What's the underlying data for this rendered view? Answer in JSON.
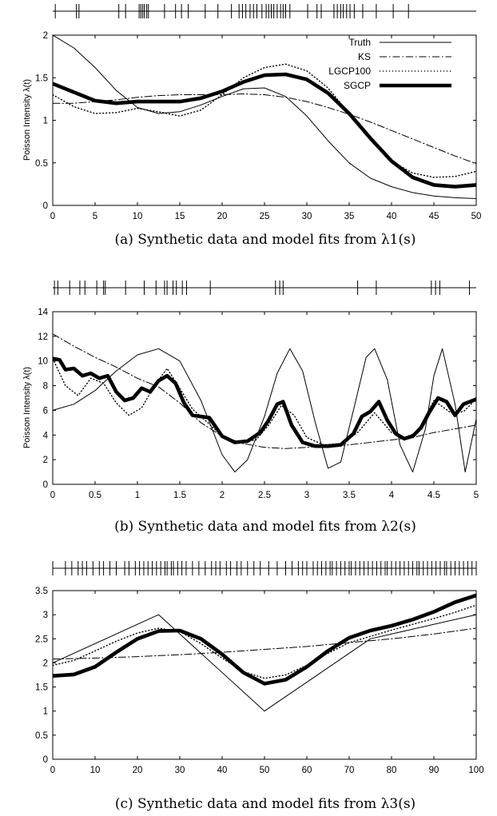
{
  "chart_data": [
    {
      "type": "line",
      "caption": "(a) Synthetic data and model fits from λ1(s)",
      "ylabel": "Poisson Intensity λ(t)",
      "xlim": [
        0,
        50
      ],
      "ylim": [
        0,
        2
      ],
      "xticks": [
        0,
        5,
        10,
        15,
        20,
        25,
        30,
        35,
        40,
        45,
        50
      ],
      "yticks": [
        0,
        0.5,
        1,
        1.5,
        2
      ],
      "legend": [
        "Truth",
        "KS",
        "LGCP100",
        "SGCP"
      ],
      "legend_position": "top-right",
      "events": [
        0.3,
        2.8,
        3.1,
        7.8,
        8.6,
        10.2,
        10.4,
        10.6,
        10.8,
        11.1,
        11.3,
        13.2,
        14.5,
        15.2,
        16.0,
        18.0,
        19.5,
        21.1,
        22.0,
        22.4,
        22.8,
        23.3,
        23.7,
        24.1,
        24.7,
        25.2,
        25.5,
        25.8,
        26.1,
        26.5,
        26.9,
        27.2,
        27.5,
        28.0,
        30.1,
        31.2,
        31.7,
        33.2,
        33.6,
        34.0,
        34.3,
        34.7,
        35.1,
        35.6,
        36.6,
        38.2,
        40.2,
        42.0
      ],
      "series": [
        {
          "name": "Truth",
          "x": [
            0,
            2.5,
            5,
            7.5,
            10,
            12.5,
            15,
            17.5,
            20,
            22.5,
            25,
            27.5,
            30,
            32.5,
            35,
            37.5,
            40,
            42.5,
            45,
            47.5,
            50
          ],
          "y": [
            2.0,
            1.85,
            1.62,
            1.35,
            1.15,
            1.08,
            1.1,
            1.18,
            1.28,
            1.37,
            1.38,
            1.28,
            1.05,
            0.76,
            0.5,
            0.32,
            0.22,
            0.15,
            0.11,
            0.09,
            0.08
          ]
        },
        {
          "name": "KS",
          "x": [
            0,
            2.5,
            5,
            7.5,
            10,
            12.5,
            15,
            17.5,
            20,
            22.5,
            25,
            27.5,
            30,
            32.5,
            35,
            37.5,
            40,
            42.5,
            45,
            47.5,
            50
          ],
          "y": [
            1.2,
            1.2,
            1.22,
            1.24,
            1.27,
            1.29,
            1.3,
            1.3,
            1.3,
            1.31,
            1.3,
            1.27,
            1.22,
            1.15,
            1.07,
            0.98,
            0.88,
            0.78,
            0.68,
            0.58,
            0.49
          ]
        },
        {
          "name": "LGCP100",
          "x": [
            0,
            2.5,
            5,
            7.5,
            10,
            12.5,
            15,
            17.5,
            20,
            22.5,
            25,
            27.5,
            30,
            32.5,
            35,
            37.5,
            40,
            42.5,
            45,
            47.5,
            50
          ],
          "y": [
            1.3,
            1.16,
            1.08,
            1.09,
            1.14,
            1.1,
            1.05,
            1.12,
            1.3,
            1.5,
            1.62,
            1.66,
            1.58,
            1.38,
            1.08,
            0.78,
            0.52,
            0.38,
            0.33,
            0.34,
            0.4
          ]
        },
        {
          "name": "SGCP",
          "x": [
            0,
            2.5,
            5,
            7.5,
            10,
            12.5,
            15,
            17.5,
            20,
            22.5,
            25,
            27.5,
            30,
            32.5,
            35,
            37.5,
            40,
            42.5,
            45,
            47.5,
            50
          ],
          "y": [
            1.43,
            1.33,
            1.23,
            1.2,
            1.22,
            1.22,
            1.22,
            1.26,
            1.34,
            1.45,
            1.53,
            1.54,
            1.48,
            1.32,
            1.08,
            0.79,
            0.52,
            0.33,
            0.24,
            0.22,
            0.24
          ]
        }
      ]
    },
    {
      "type": "line",
      "caption": "(b) Synthetic data and model fits from λ2(s)",
      "ylabel": "Poisson Intensity λ(t)",
      "xlim": [
        0,
        5
      ],
      "ylim": [
        0,
        14
      ],
      "xticks": [
        0,
        0.5,
        1,
        1.5,
        2,
        2.5,
        3,
        3.5,
        4,
        4.5,
        5
      ],
      "yticks": [
        0,
        2,
        4,
        6,
        8,
        10,
        12,
        14
      ],
      "events": [
        0.02,
        0.06,
        0.2,
        0.32,
        0.38,
        0.52,
        0.6,
        0.62,
        0.86,
        1.08,
        1.22,
        1.32,
        1.35,
        1.42,
        1.46,
        1.53,
        1.58,
        1.86,
        2.63,
        2.68,
        2.72,
        3.6,
        3.82,
        4.47,
        4.52,
        4.57,
        4.92
      ],
      "series": [
        {
          "name": "Truth",
          "x": [
            0,
            0.25,
            0.5,
            0.75,
            1,
            1.25,
            1.5,
            1.75,
            2,
            2.15,
            2.3,
            2.5,
            2.65,
            2.8,
            2.95,
            3.1,
            3.25,
            3.4,
            3.55,
            3.7,
            3.8,
            3.95,
            4.1,
            4.25,
            4.4,
            4.5,
            4.6,
            4.75,
            4.87,
            5
          ],
          "y": [
            6.0,
            6.5,
            7.6,
            9.2,
            10.5,
            11.0,
            10.0,
            6.8,
            2.4,
            1.0,
            2.0,
            5.5,
            9.0,
            11.0,
            9.2,
            5.0,
            1.3,
            1.8,
            6.0,
            10.3,
            11.0,
            8.5,
            3.2,
            1.0,
            4.5,
            8.8,
            11.0,
            6.5,
            1.0,
            5.3
          ]
        },
        {
          "name": "KS",
          "x": [
            0,
            0.25,
            0.5,
            0.75,
            1,
            1.25,
            1.5,
            1.75,
            2,
            2.25,
            2.5,
            2.75,
            3,
            3.25,
            3.5,
            3.75,
            4,
            4.25,
            4.5,
            4.75,
            5
          ],
          "y": [
            12.2,
            11.2,
            10.3,
            9.5,
            8.6,
            7.9,
            6.6,
            5.0,
            3.9,
            3.3,
            3.0,
            2.9,
            3.0,
            3.1,
            3.2,
            3.4,
            3.6,
            3.8,
            4.2,
            4.5,
            4.8
          ]
        },
        {
          "name": "LGCP100",
          "x": [
            0,
            0.15,
            0.3,
            0.45,
            0.6,
            0.75,
            0.9,
            1.05,
            1.2,
            1.35,
            1.5,
            1.65,
            1.8,
            2.0,
            2.2,
            2.4,
            2.55,
            2.7,
            2.85,
            3.0,
            3.2,
            3.4,
            3.6,
            3.8,
            4.0,
            4.15,
            4.3,
            4.5,
            4.7,
            4.85,
            5
          ],
          "y": [
            10.2,
            8.0,
            7.2,
            8.6,
            8.2,
            6.6,
            5.6,
            6.2,
            8.0,
            9.4,
            7.8,
            6.1,
            5.2,
            3.9,
            3.4,
            3.6,
            4.8,
            6.4,
            5.6,
            3.8,
            3.2,
            3.3,
            4.2,
            5.8,
            4.2,
            3.8,
            4.2,
            6.8,
            5.8,
            5.9,
            6.9
          ]
        },
        {
          "name": "SGCP",
          "x": [
            0,
            0.08,
            0.15,
            0.25,
            0.35,
            0.45,
            0.55,
            0.65,
            0.75,
            0.85,
            0.95,
            1.05,
            1.15,
            1.25,
            1.35,
            1.45,
            1.55,
            1.65,
            1.75,
            1.85,
            2.0,
            2.15,
            2.3,
            2.45,
            2.55,
            2.65,
            2.72,
            2.82,
            2.95,
            3.1,
            3.25,
            3.4,
            3.55,
            3.65,
            3.75,
            3.85,
            3.95,
            4.05,
            4.15,
            4.25,
            4.35,
            4.45,
            4.55,
            4.65,
            4.75,
            4.85,
            5
          ],
          "y": [
            10.2,
            10.1,
            9.3,
            9.4,
            8.8,
            9.0,
            8.6,
            8.8,
            7.5,
            6.8,
            7.0,
            7.8,
            7.5,
            8.4,
            8.8,
            8.2,
            6.6,
            5.6,
            5.5,
            5.4,
            3.9,
            3.4,
            3.5,
            4.2,
            5.2,
            6.5,
            6.7,
            4.8,
            3.4,
            3.1,
            3.1,
            3.2,
            4.1,
            5.5,
            5.9,
            6.7,
            5.2,
            4.1,
            3.7,
            3.9,
            4.6,
            5.9,
            7.0,
            6.7,
            5.6,
            6.5,
            6.9
          ]
        }
      ]
    },
    {
      "type": "line",
      "caption": "(c) Synthetic data and model fits from λ3(s)",
      "ylabel": "",
      "xlim": [
        0,
        100
      ],
      "ylim": [
        0,
        3.5
      ],
      "xticks": [
        0,
        10,
        20,
        30,
        40,
        50,
        60,
        70,
        80,
        90,
        100
      ],
      "yticks": [
        0,
        0.5,
        1,
        1.5,
        2,
        2.5,
        3,
        3.5
      ],
      "events": [
        0,
        3,
        4.5,
        6,
        7,
        8,
        9.5,
        11,
        12,
        13.5,
        15,
        17,
        18,
        19.5,
        20.5,
        21.5,
        22.5,
        23.5,
        24.5,
        25.5,
        26.5,
        27,
        28,
        28.5,
        29.5,
        30.5,
        31.5,
        33,
        34.5,
        36,
        37.5,
        38.5,
        39.5,
        41,
        42,
        43.5,
        44.5,
        46,
        47.5,
        49,
        51,
        53,
        55,
        56.5,
        58,
        59,
        60,
        61.5,
        62.5,
        63.5,
        64.5,
        65.5,
        66,
        67,
        68,
        69,
        70,
        70.5,
        71.5,
        72.5,
        73.5,
        74.5,
        75.5,
        76.5,
        77.5,
        78.5,
        79,
        80,
        81,
        82,
        83,
        84,
        85,
        86,
        86.5,
        87.5,
        88.5,
        89.5,
        90.5,
        91.5,
        92.5,
        93,
        94,
        95,
        96,
        97,
        98,
        99,
        100
      ],
      "series": [
        {
          "name": "Truth",
          "x": [
            0,
            25,
            50,
            75,
            100
          ],
          "y": [
            2.0,
            3.0,
            1.0,
            2.5,
            3.0
          ]
        },
        {
          "name": "KS",
          "x": [
            0,
            10,
            20,
            30,
            40,
            50,
            60,
            70,
            80,
            90,
            100
          ],
          "y": [
            2.08,
            2.1,
            2.13,
            2.17,
            2.22,
            2.28,
            2.34,
            2.42,
            2.5,
            2.6,
            2.72
          ]
        },
        {
          "name": "LGCP100",
          "x": [
            0,
            5,
            10,
            15,
            20,
            25,
            30,
            35,
            40,
            45,
            50,
            55,
            60,
            65,
            70,
            75,
            80,
            85,
            90,
            95,
            100
          ],
          "y": [
            1.95,
            2.05,
            2.25,
            2.45,
            2.62,
            2.72,
            2.65,
            2.4,
            2.1,
            1.82,
            1.68,
            1.75,
            1.95,
            2.2,
            2.42,
            2.55,
            2.68,
            2.8,
            2.92,
            3.05,
            3.2
          ]
        },
        {
          "name": "SGCP",
          "x": [
            0,
            5,
            10,
            15,
            20,
            25,
            30,
            35,
            40,
            45,
            50,
            55,
            60,
            65,
            70,
            75,
            80,
            85,
            90,
            95,
            100
          ],
          "y": [
            1.73,
            1.76,
            1.92,
            2.22,
            2.5,
            2.66,
            2.67,
            2.5,
            2.18,
            1.8,
            1.57,
            1.65,
            1.92,
            2.25,
            2.52,
            2.67,
            2.77,
            2.9,
            3.06,
            3.26,
            3.4
          ]
        }
      ]
    }
  ]
}
